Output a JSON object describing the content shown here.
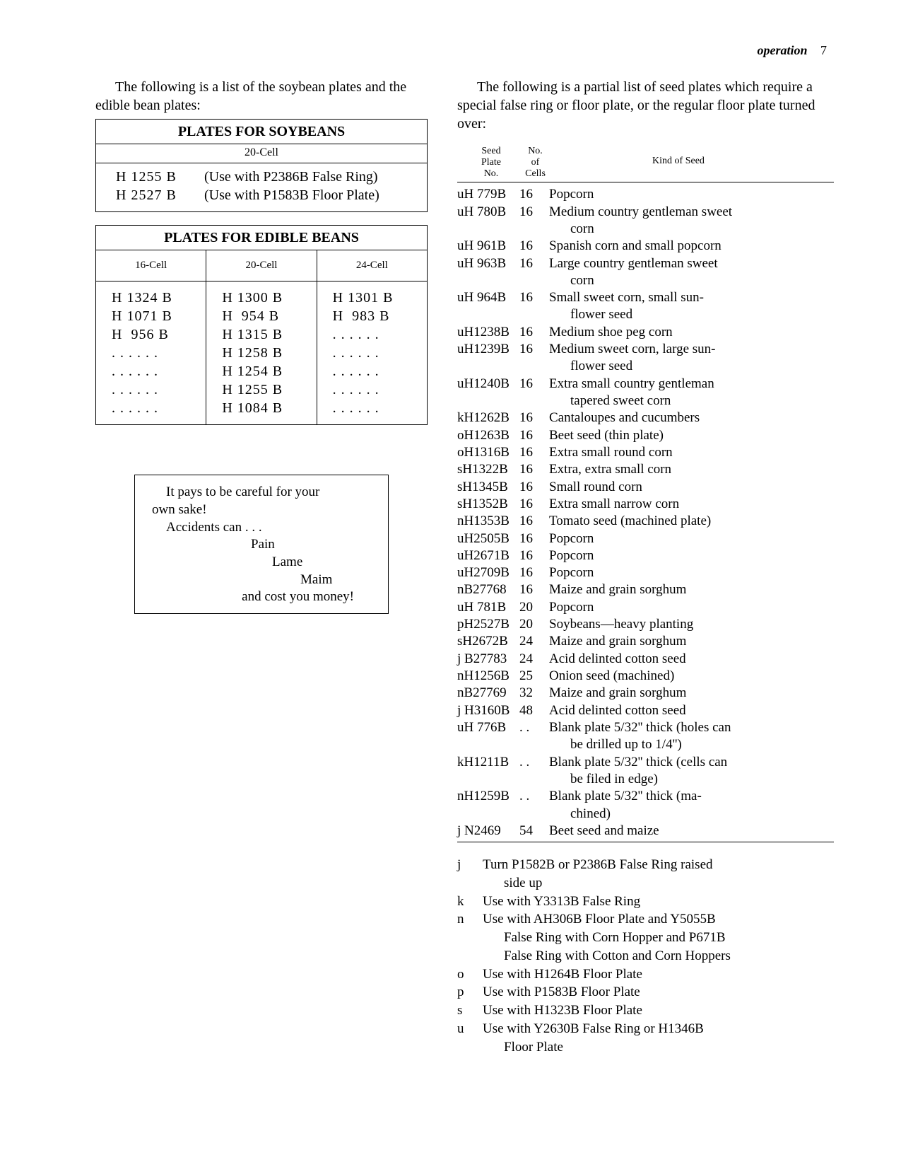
{
  "header": {
    "section": "operation",
    "page": "7"
  },
  "left": {
    "intro": "The following is a list of the soybean plates and the edible bean plates:",
    "soy": {
      "title": "PLATES FOR SOYBEANS",
      "sub": "20-Cell",
      "rows": [
        {
          "plate": "H 1255 B",
          "note": "(Use with P2386B False Ring)"
        },
        {
          "plate": "H 2527 B",
          "note": "(Use with P1583B Floor Plate)"
        }
      ]
    },
    "edible": {
      "title": "PLATES FOR EDIBLE BEANS",
      "headers": [
        "16-Cell",
        "20-Cell",
        "24-Cell"
      ],
      "col1": [
        "H 1324 B",
        "H 1071 B",
        "H  956 B",
        ". . . . . .",
        ". . . . . .",
        ". . . . . .",
        ". . . . . ."
      ],
      "col2": [
        "H 1300 B",
        "H  954 B",
        "H 1315 B",
        "H 1258 B",
        "H 1254 B",
        "H 1255 B",
        "H 1084 B"
      ],
      "col3": [
        "H 1301 B",
        "H  983 B",
        ". . . . . .",
        ". . . . . .",
        ". . . . . .",
        ". . . . . .",
        ". . . . . ."
      ]
    },
    "safety": {
      "l1": "It pays to be careful for your",
      "l2": "own sake!",
      "l3": "Accidents can . . .",
      "l4": "Pain",
      "l5": "Lame",
      "l6": "Maim",
      "l7": "and cost you money!"
    }
  },
  "right": {
    "intro": "The following is a partial list of seed plates which require a special false ring or floor plate, or the regular floor plate turned over:",
    "headers": {
      "c1a": "Seed",
      "c1b": "Plate",
      "c1c": "No.",
      "c2a": "No.",
      "c2b": "of",
      "c2c": "Cells",
      "c3": "Kind of Seed"
    },
    "rows": [
      {
        "p": "uH 779B",
        "c": "16",
        "k": "Popcorn"
      },
      {
        "p": "uH 780B",
        "c": "16",
        "k": "Medium country gentleman sweet",
        "k2": "corn"
      },
      {
        "p": "uH 961B",
        "c": "16",
        "k": "Spanish corn and small popcorn"
      },
      {
        "p": "uH 963B",
        "c": "16",
        "k": "Large country gentleman sweet",
        "k2": "corn"
      },
      {
        "p": "uH 964B",
        "c": "16",
        "k": "Small sweet corn, small sun-",
        "k2": "flower seed"
      },
      {
        "p": "uH1238B",
        "c": "16",
        "k": "Medium shoe peg corn"
      },
      {
        "p": "uH1239B",
        "c": "16",
        "k": "Medium sweet corn, large sun-",
        "k2": "flower seed"
      },
      {
        "p": "uH1240B",
        "c": "16",
        "k": "Extra small country gentleman",
        "k2": "tapered sweet corn"
      },
      {
        "p": "kH1262B",
        "c": "16",
        "k": "Cantaloupes and cucumbers"
      },
      {
        "p": "oH1263B",
        "c": "16",
        "k": "Beet seed (thin plate)"
      },
      {
        "p": "oH1316B",
        "c": "16",
        "k": "Extra small round corn"
      },
      {
        "p": "sH1322B",
        "c": "16",
        "k": "Extra, extra small corn"
      },
      {
        "p": "sH1345B",
        "c": "16",
        "k": "Small round corn"
      },
      {
        "p": "sH1352B",
        "c": "16",
        "k": "Extra small narrow corn"
      },
      {
        "p": "nH1353B",
        "c": "16",
        "k": "Tomato seed (machined plate)"
      },
      {
        "p": "uH2505B",
        "c": "16",
        "k": "Popcorn"
      },
      {
        "p": "uH2671B",
        "c": "16",
        "k": "Popcorn"
      },
      {
        "p": "uH2709B",
        "c": "16",
        "k": "Popcorn"
      },
      {
        "p": "nB27768",
        "c": "16",
        "k": "Maize and grain sorghum"
      },
      {
        "p": "uH 781B",
        "c": "20",
        "k": "Popcorn"
      },
      {
        "p": "pH2527B",
        "c": "20",
        "k": "Soybeans—heavy planting"
      },
      {
        "p": "sH2672B",
        "c": "24",
        "k": "Maize and grain sorghum"
      },
      {
        "p": "j B27783",
        "c": "24",
        "k": "Acid delinted cotton seed"
      },
      {
        "p": "nH1256B",
        "c": "25",
        "k": "Onion seed (machined)"
      },
      {
        "p": "nB27769",
        "c": "32",
        "k": "Maize and grain sorghum"
      },
      {
        "p": "j H3160B",
        "c": "48",
        "k": "Acid delinted cotton seed"
      },
      {
        "p": "uH 776B",
        "c": ". .",
        "k": "Blank plate 5/32'' thick (holes can",
        "k2": "be drilled up to 1/4'')"
      },
      {
        "p": "kH1211B",
        "c": ". .",
        "k": "Blank plate 5/32'' thick (cells can",
        "k2": "be filed in edge)"
      },
      {
        "p": "nH1259B",
        "c": ". .",
        "k": "Blank plate 5/32'' thick (ma-",
        "k2": "chined)"
      },
      {
        "p": "j N2469",
        "c": "54",
        "k": "Beet seed and maize"
      }
    ],
    "footnotes": [
      {
        "key": "j",
        "t": "Turn P1582B or P2386B False Ring raised",
        "t2": "side up"
      },
      {
        "key": "k",
        "t": "Use with Y3313B False Ring"
      },
      {
        "key": "n",
        "t": "Use with AH306B Floor Plate and Y5055B",
        "t2": "False Ring with Corn Hopper and P671B",
        "t3": "False Ring with Cotton and Corn Hoppers"
      },
      {
        "key": "o",
        "t": "Use with H1264B Floor Plate"
      },
      {
        "key": "p",
        "t": "Use with P1583B Floor Plate"
      },
      {
        "key": "s",
        "t": "Use with H1323B Floor Plate"
      },
      {
        "key": "u",
        "t": "Use with Y2630B False Ring or H1346B",
        "t2": "Floor Plate"
      }
    ]
  }
}
